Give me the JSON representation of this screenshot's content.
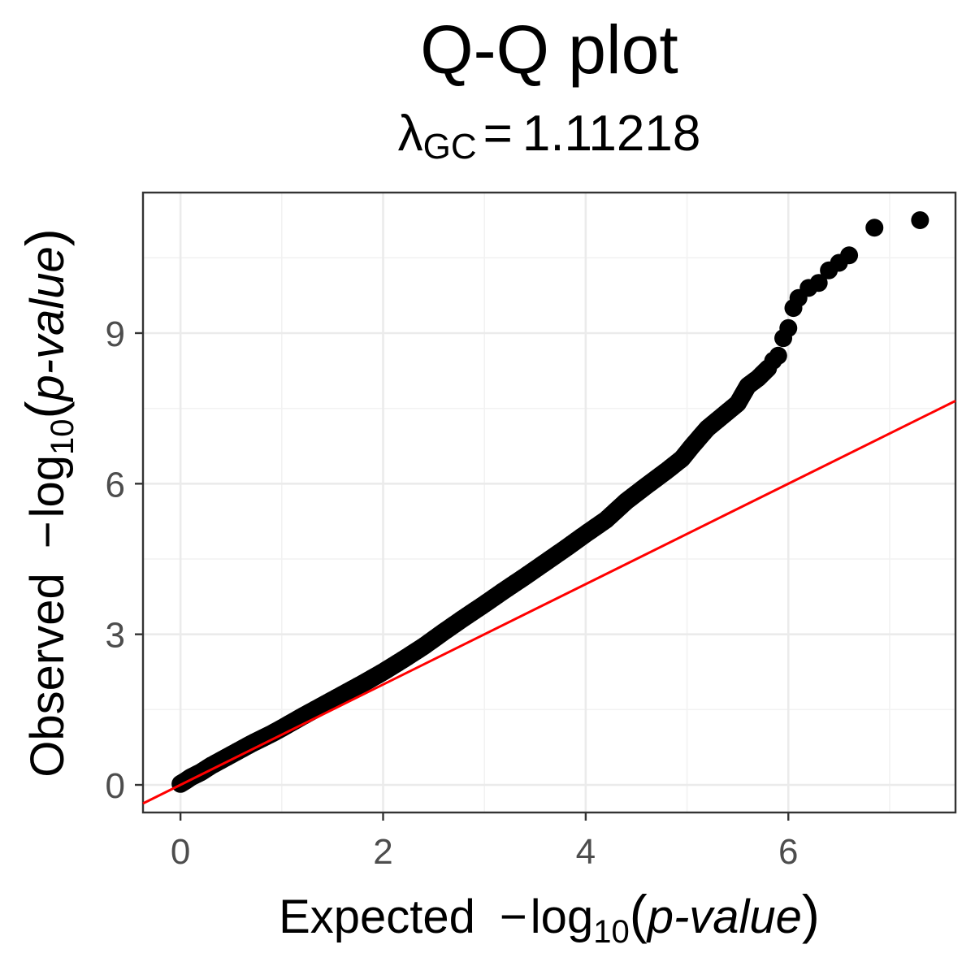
{
  "chart_data": {
    "type": "scatter",
    "title": "Q-Q plot",
    "subtitle": {
      "symbol": "λ",
      "subscript": "GC",
      "equals": "=",
      "value": "1.11218"
    },
    "xlabel": {
      "prefix": "Expected",
      "minus": "−",
      "log": "log",
      "base": "10",
      "open": "(",
      "var": "p-value",
      "close": ")"
    },
    "ylabel": {
      "prefix": "Observed",
      "minus": "−",
      "log": "log",
      "base": "10",
      "open": "(",
      "var": "p-value",
      "close": ")"
    },
    "xlim": [
      -0.37,
      7.65
    ],
    "ylim": [
      -0.55,
      11.8
    ],
    "x_ticks": [
      0,
      2,
      4,
      6
    ],
    "y_ticks": [
      0,
      3,
      6,
      9
    ],
    "x_minor": [
      1,
      3,
      5,
      7
    ],
    "y_minor": [
      1.5,
      4.5,
      7.5,
      10.5
    ],
    "grid": true,
    "reference_line": {
      "slope": 1,
      "intercept": 0,
      "color": "#ff0000"
    },
    "point_color": "#000000",
    "series": [
      {
        "x": [
          0,
          0.05,
          0.1,
          0.2,
          0.3,
          0.5,
          0.7,
          0.9,
          1.0,
          1.2,
          1.4,
          1.6,
          1.8,
          2.0,
          2.2,
          2.4,
          2.6,
          2.8,
          3.0,
          3.2,
          3.4,
          3.6,
          3.8,
          4.0,
          4.2,
          4.4,
          4.6,
          4.8,
          4.95,
          5.05,
          5.2,
          5.35,
          5.5,
          5.6,
          5.7,
          5.8,
          5.85,
          5.9,
          5.95,
          6.0,
          6.05,
          6.1,
          6.2,
          6.3,
          6.4,
          6.5,
          6.6,
          6.85,
          7.3
        ],
        "y": [
          0.02,
          0.08,
          0.15,
          0.25,
          0.38,
          0.6,
          0.82,
          1.02,
          1.13,
          1.36,
          1.58,
          1.8,
          2.02,
          2.25,
          2.5,
          2.76,
          3.05,
          3.33,
          3.6,
          3.88,
          4.15,
          4.43,
          4.71,
          5.0,
          5.28,
          5.65,
          5.96,
          6.26,
          6.5,
          6.75,
          7.1,
          7.35,
          7.6,
          7.95,
          8.1,
          8.3,
          8.45,
          8.55,
          8.9,
          9.1,
          9.5,
          9.7,
          9.9,
          10.0,
          10.25,
          10.4,
          10.55,
          11.1,
          11.25
        ]
      }
    ]
  }
}
